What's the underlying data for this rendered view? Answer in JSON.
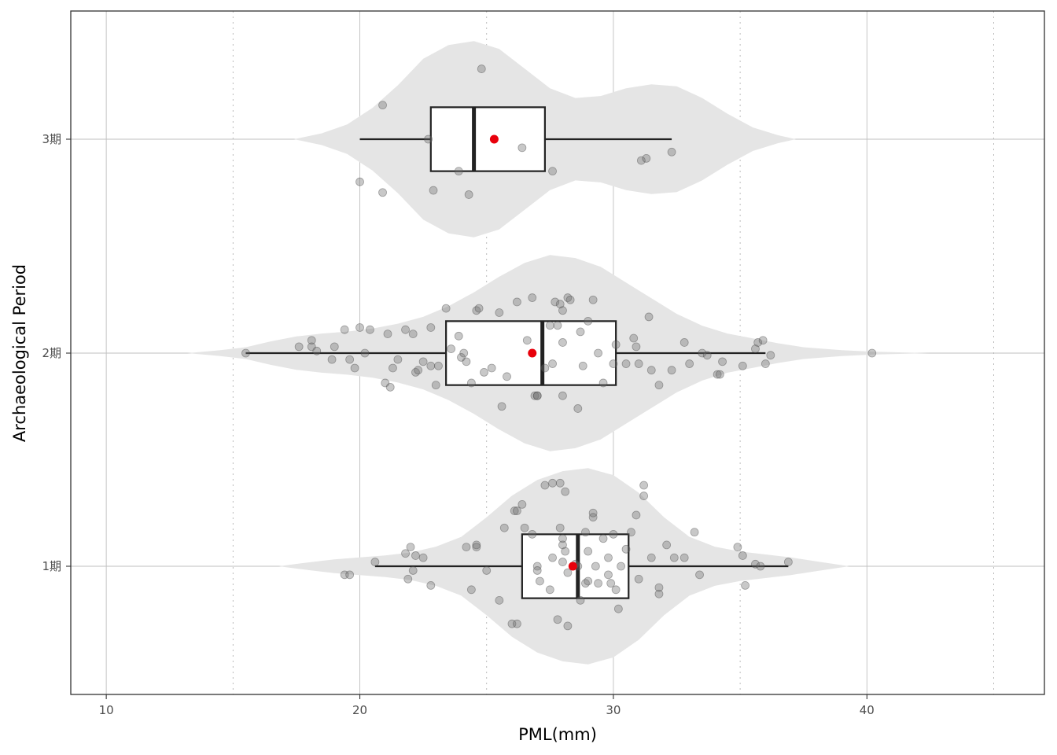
{
  "chart_data": {
    "type": "violin-box-jitter",
    "xlabel": "PML(mm)",
    "ylabel": "Archaeological Period",
    "xlim": [
      8.6,
      47.0
    ],
    "x_ticks": [
      10,
      20,
      30,
      40
    ],
    "x_minor_dotted": [
      15,
      25,
      35,
      45
    ],
    "grid": true,
    "categories": [
      "1期",
      "2期",
      "3期"
    ],
    "groups": [
      {
        "name": "1期",
        "box": {
          "min": 20.6,
          "q1": 26.4,
          "median": 28.6,
          "q3": 30.6,
          "max": 36.9
        },
        "mean": 28.4,
        "violin": [
          [
            16.8,
            0.0
          ],
          [
            18,
            0.04
          ],
          [
            19,
            0.07
          ],
          [
            20,
            0.09
          ],
          [
            21,
            0.11
          ],
          [
            22,
            0.14
          ],
          [
            23,
            0.2
          ],
          [
            24,
            0.3
          ],
          [
            25,
            0.5
          ],
          [
            26,
            0.72
          ],
          [
            27,
            0.88
          ],
          [
            28,
            0.97
          ],
          [
            29,
            1.0
          ],
          [
            30,
            0.93
          ],
          [
            31,
            0.75
          ],
          [
            32,
            0.5
          ],
          [
            33,
            0.3
          ],
          [
            34,
            0.2
          ],
          [
            35,
            0.15
          ],
          [
            36,
            0.12
          ],
          [
            37,
            0.09
          ],
          [
            38,
            0.05
          ],
          [
            39.3,
            0.0
          ]
        ],
        "points": [
          [
            19.4,
            -0.04
          ],
          [
            19.6,
            -0.04
          ],
          [
            20.6,
            0.02
          ],
          [
            21.8,
            0.06
          ],
          [
            21.9,
            -0.06
          ],
          [
            22.0,
            0.09
          ],
          [
            22.1,
            -0.02
          ],
          [
            22.2,
            0.05
          ],
          [
            22.5,
            0.04
          ],
          [
            22.8,
            -0.09
          ],
          [
            24.2,
            0.09
          ],
          [
            24.4,
            -0.11
          ],
          [
            24.6,
            0.1
          ],
          [
            24.6,
            0.09
          ],
          [
            25,
            -0.02
          ],
          [
            25.5,
            -0.16
          ],
          [
            25.7,
            0.18
          ],
          [
            26,
            -0.27
          ],
          [
            26.2,
            -0.27
          ],
          [
            26.1,
            0.26
          ],
          [
            26.2,
            0.26
          ],
          [
            26.4,
            0.29
          ],
          [
            26.5,
            0.18
          ],
          [
            26.8,
            0.15
          ],
          [
            27,
            0.0
          ],
          [
            27.0,
            -0.02
          ],
          [
            27.1,
            -0.07
          ],
          [
            27.3,
            0.38
          ],
          [
            27.5,
            -0.11
          ],
          [
            27.6,
            0.39
          ],
          [
            27.6,
            0.04
          ],
          [
            27.8,
            -0.25
          ],
          [
            27.9,
            0.39
          ],
          [
            27.9,
            0.18
          ],
          [
            28.0,
            0.13
          ],
          [
            28.0,
            0.1
          ],
          [
            28.0,
            0.02
          ],
          [
            28.1,
            0.35
          ],
          [
            28.1,
            0.07
          ],
          [
            28.2,
            -0.03
          ],
          [
            28.2,
            -0.28
          ],
          [
            28.5,
            0.01
          ],
          [
            28.6,
            0.0
          ],
          [
            28.7,
            -0.16
          ],
          [
            28.9,
            0.16
          ],
          [
            28.9,
            -0.08
          ],
          [
            29.0,
            -0.07
          ],
          [
            29.0,
            0.07
          ],
          [
            29.2,
            0.23
          ],
          [
            29.2,
            0.25
          ],
          [
            29.3,
            0.0
          ],
          [
            29.4,
            -0.08
          ],
          [
            29.6,
            0.13
          ],
          [
            29.8,
            0.04
          ],
          [
            29.8,
            -0.04
          ],
          [
            29.9,
            -0.08
          ],
          [
            30.0,
            0.15
          ],
          [
            30.1,
            -0.11
          ],
          [
            30.2,
            -0.2
          ],
          [
            30.3,
            0.0
          ],
          [
            30.5,
            0.08
          ],
          [
            30.7,
            0.16
          ],
          [
            30.9,
            0.24
          ],
          [
            31.0,
            -0.06
          ],
          [
            31.2,
            0.33
          ],
          [
            31.2,
            0.38
          ],
          [
            31.5,
            0.04
          ],
          [
            31.8,
            -0.13
          ],
          [
            31.8,
            -0.1
          ],
          [
            32.1,
            0.1
          ],
          [
            32.4,
            0.04
          ],
          [
            32.8,
            0.04
          ],
          [
            33.2,
            0.16
          ],
          [
            33.4,
            -0.04
          ],
          [
            34.9,
            0.09
          ],
          [
            35.1,
            0.05
          ],
          [
            35.2,
            -0.09
          ],
          [
            35.6,
            0.01
          ],
          [
            35.8,
            0.0
          ],
          [
            36.9,
            0.02
          ]
        ]
      },
      {
        "name": "2期",
        "box": {
          "min": 15.5,
          "q1": 23.4,
          "median": 27.2,
          "q3": 30.1,
          "max": 36.0
        },
        "mean": 26.8,
        "outliers": [
          40.2
        ],
        "violin": [
          [
            13.2,
            0.0
          ],
          [
            14.5,
            0.03
          ],
          [
            15.5,
            0.06
          ],
          [
            16.5,
            0.12
          ],
          [
            17.5,
            0.17
          ],
          [
            18.5,
            0.2
          ],
          [
            19.5,
            0.22
          ],
          [
            20.5,
            0.25
          ],
          [
            21.5,
            0.3
          ],
          [
            22.5,
            0.37
          ],
          [
            23.5,
            0.48
          ],
          [
            24.5,
            0.62
          ],
          [
            25.5,
            0.78
          ],
          [
            26.5,
            0.92
          ],
          [
            27.5,
            1.0
          ],
          [
            28.5,
            0.97
          ],
          [
            29.5,
            0.88
          ],
          [
            30.5,
            0.72
          ],
          [
            31.5,
            0.56
          ],
          [
            32.5,
            0.4
          ],
          [
            33.5,
            0.28
          ],
          [
            34.5,
            0.2
          ],
          [
            35.5,
            0.15
          ],
          [
            36.5,
            0.1
          ],
          [
            37.5,
            0.06
          ],
          [
            39,
            0.03
          ],
          [
            40.2,
            0.015
          ],
          [
            42.5,
            0.0
          ]
        ],
        "points": [
          [
            15.5,
            0.0
          ],
          [
            17.6,
            0.03
          ],
          [
            18.1,
            0.06
          ],
          [
            18.1,
            0.03
          ],
          [
            18.3,
            0.01
          ],
          [
            18.9,
            -0.03
          ],
          [
            19.0,
            0.03
          ],
          [
            19.4,
            0.11
          ],
          [
            19.6,
            -0.03
          ],
          [
            19.8,
            -0.07
          ],
          [
            20,
            0.12
          ],
          [
            20.2,
            0.0
          ],
          [
            20.4,
            0.11
          ],
          [
            21,
            -0.14
          ],
          [
            21.1,
            0.09
          ],
          [
            21.2,
            -0.16
          ],
          [
            21.3,
            -0.07
          ],
          [
            21.5,
            -0.03
          ],
          [
            21.8,
            0.11
          ],
          [
            22.1,
            0.09
          ],
          [
            22.2,
            -0.09
          ],
          [
            22.3,
            -0.08
          ],
          [
            22.5,
            -0.04
          ],
          [
            22.8,
            0.12
          ],
          [
            22.8,
            -0.06
          ],
          [
            23.0,
            -0.15
          ],
          [
            23.1,
            -0.06
          ],
          [
            23.4,
            0.21
          ],
          [
            23.6,
            0.02
          ],
          [
            23.9,
            0.08
          ],
          [
            24.0,
            -0.02
          ],
          [
            24.1,
            0.0
          ],
          [
            24.2,
            -0.04
          ],
          [
            24.4,
            -0.14
          ],
          [
            24.6,
            0.2
          ],
          [
            24.7,
            0.21
          ],
          [
            24.9,
            -0.09
          ],
          [
            25.2,
            -0.07
          ],
          [
            25.5,
            0.19
          ],
          [
            25.6,
            -0.25
          ],
          [
            25.8,
            -0.11
          ],
          [
            26.2,
            0.24
          ],
          [
            26.6,
            0.06
          ],
          [
            26.8,
            0.26
          ],
          [
            26.9,
            -0.2
          ],
          [
            27.0,
            -0.2
          ],
          [
            27.0,
            -0.2
          ],
          [
            27.3,
            -0.07
          ],
          [
            27.5,
            0.13
          ],
          [
            27.6,
            -0.05
          ],
          [
            27.7,
            0.24
          ],
          [
            27.8,
            0.13
          ],
          [
            27.9,
            0.23
          ],
          [
            28.0,
            0.2
          ],
          [
            28.0,
            0.05
          ],
          [
            28.0,
            -0.2
          ],
          [
            28.2,
            0.26
          ],
          [
            28.3,
            0.25
          ],
          [
            28.6,
            -0.26
          ],
          [
            28.7,
            0.1
          ],
          [
            28.8,
            -0.06
          ],
          [
            29.0,
            0.15
          ],
          [
            29.2,
            0.25
          ],
          [
            29.4,
            0.0
          ],
          [
            29.6,
            -0.14
          ],
          [
            30.0,
            -0.05
          ],
          [
            30.1,
            0.04
          ],
          [
            30.5,
            -0.05
          ],
          [
            30.8,
            0.07
          ],
          [
            30.9,
            0.03
          ],
          [
            31.0,
            -0.05
          ],
          [
            31.4,
            0.17
          ],
          [
            31.5,
            -0.08
          ],
          [
            31.8,
            -0.15
          ],
          [
            32.3,
            -0.08
          ],
          [
            32.8,
            0.05
          ],
          [
            33.0,
            -0.05
          ],
          [
            33.5,
            0.0
          ],
          [
            33.7,
            -0.01
          ],
          [
            34.1,
            -0.1
          ],
          [
            34.2,
            -0.1
          ],
          [
            34.3,
            -0.04
          ],
          [
            35.1,
            -0.06
          ],
          [
            35.6,
            0.02
          ],
          [
            35.7,
            0.05
          ],
          [
            35.9,
            0.06
          ],
          [
            36.0,
            -0.05
          ],
          [
            36.2,
            -0.01
          ]
        ]
      },
      {
        "name": "3期",
        "box": {
          "min": 20.0,
          "q1": 22.8,
          "median": 24.5,
          "q3": 27.3,
          "max": 32.3
        },
        "mean": 25.3,
        "violin": [
          [
            17.4,
            0.0
          ],
          [
            18.5,
            0.06
          ],
          [
            19.5,
            0.15
          ],
          [
            20.5,
            0.32
          ],
          [
            21.5,
            0.55
          ],
          [
            22.5,
            0.82
          ],
          [
            23.5,
            0.96
          ],
          [
            24.5,
            1.0
          ],
          [
            25.5,
            0.92
          ],
          [
            26.5,
            0.72
          ],
          [
            27.5,
            0.52
          ],
          [
            28.5,
            0.42
          ],
          [
            29.5,
            0.44
          ],
          [
            30.5,
            0.52
          ],
          [
            31.5,
            0.56
          ],
          [
            32.5,
            0.54
          ],
          [
            33.5,
            0.42
          ],
          [
            34.5,
            0.26
          ],
          [
            35.5,
            0.12
          ],
          [
            36.5,
            0.04
          ],
          [
            37.2,
            0.0
          ]
        ],
        "points": [
          [
            20.0,
            -0.2
          ],
          [
            20.9,
            -0.25
          ],
          [
            20.9,
            0.16
          ],
          [
            22.7,
            0.0
          ],
          [
            22.9,
            -0.24
          ],
          [
            23.9,
            -0.15
          ],
          [
            24.3,
            -0.26
          ],
          [
            24.8,
            0.33
          ],
          [
            26.4,
            -0.04
          ],
          [
            27.6,
            -0.15
          ],
          [
            31.1,
            -0.1
          ],
          [
            31.3,
            -0.09
          ],
          [
            32.3,
            -0.06
          ]
        ]
      }
    ]
  }
}
